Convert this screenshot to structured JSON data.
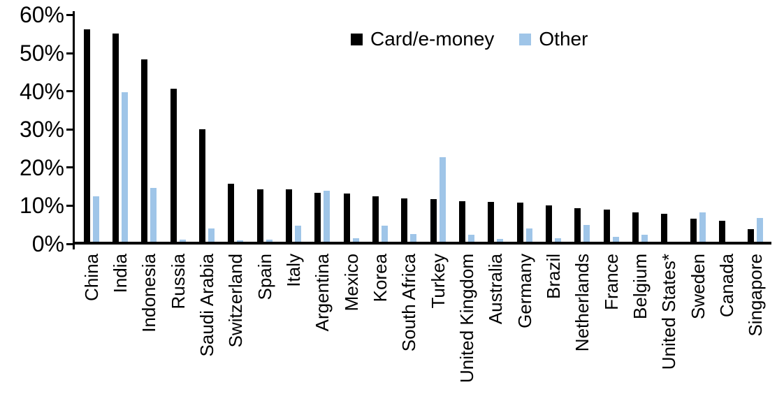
{
  "chart_data": {
    "type": "bar",
    "title": "",
    "categories": [
      "China",
      "India",
      "Indonesia",
      "Russia",
      "Saudi Arabia",
      "Switzerland",
      "Spain",
      "Italy",
      "Argentina",
      "Mexico",
      "Korea",
      "South Africa",
      "Turkey",
      "United Kingdom",
      "Australia",
      "Germany",
      "Brazil",
      "Netherlands",
      "France",
      "Belgium",
      "United States*",
      "Sweden",
      "Canada",
      "Singapore"
    ],
    "series": [
      {
        "name": "Card/e-money",
        "color": "#000000",
        "values": [
          56.3,
          55.2,
          48.4,
          40.6,
          30.0,
          15.7,
          14.3,
          14.2,
          13.4,
          13.1,
          12.4,
          11.9,
          11.7,
          11.2,
          11.0,
          10.8,
          10.1,
          9.4,
          8.9,
          8.3,
          7.9,
          6.6,
          6.0,
          3.9
        ]
      },
      {
        "name": "Other",
        "color": "#9FC5E8",
        "values": [
          12.4,
          39.8,
          14.6,
          1.1,
          4.1,
          1.0,
          1.1,
          4.8,
          13.9,
          1.5,
          4.7,
          2.5,
          22.7,
          2.4,
          1.2,
          4.1,
          1.4,
          5.0,
          1.8,
          2.3,
          0.3,
          8.2,
          0,
          6.7
        ]
      }
    ],
    "xlabel": "",
    "ylabel": "",
    "ylim": [
      0,
      60
    ],
    "ytick_values": [
      0,
      10,
      20,
      30,
      40,
      50,
      60
    ],
    "ytick_labels": [
      "0%",
      "10%",
      "20%",
      "30%",
      "40%",
      "50%",
      "60%"
    ],
    "grid": false,
    "legend_position": "top-center",
    "x_label_rotation_degrees": 90
  }
}
